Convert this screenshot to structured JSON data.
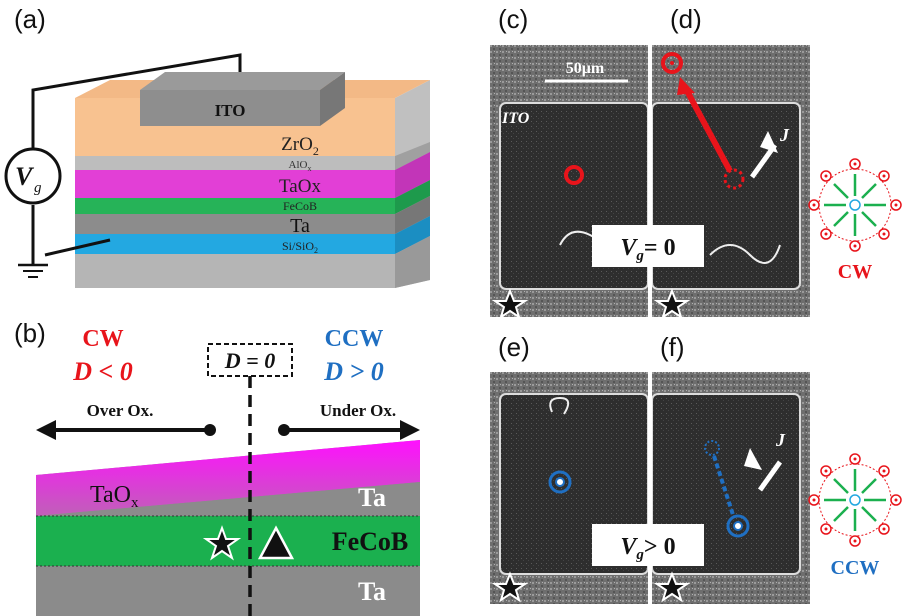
{
  "panels": {
    "a": "(a)",
    "b": "(b)",
    "c": "(c)",
    "d": "(d)",
    "e": "(e)",
    "f": "(f)"
  },
  "device": {
    "electrode": "ITO",
    "gate_voltage": "V",
    "gate_voltage_sub": "g",
    "layers": [
      {
        "label": "ZrO",
        "sub": "2",
        "color": "#f7c08c"
      },
      {
        "label": "AlO",
        "sub": "x",
        "color": "#b9b9b9"
      },
      {
        "label": "TaOx",
        "sub": "",
        "color": "#e33ed8"
      },
      {
        "label": "FeCoB",
        "sub": "",
        "color": "#27b35a"
      },
      {
        "label": "Ta",
        "sub": "",
        "color": "#8a8a8a"
      },
      {
        "label": "Si/SiO",
        "sub": "2",
        "color": "#22a7e0"
      }
    ]
  },
  "dmi": {
    "cw_label": "CW",
    "cw_condition": "D < 0",
    "ccw_label": "CCW",
    "ccw_condition": "D > 0",
    "zero_condition": "D = 0",
    "over_ox": "Over Ox.",
    "under_ox": "Under Ox.",
    "layer_taox": "TaO",
    "layer_taox_sub": "x",
    "layer_ta_top": "Ta",
    "layer_fecob": "FeCoB",
    "layer_ta_bottom": "Ta",
    "colors": {
      "cw": "#e8141b",
      "ccw": "#1f6fc2",
      "taox": "#ff1cff",
      "fecob": "#1bb04f",
      "ta": "#8b8b8b"
    }
  },
  "microscopy": {
    "scale_bar": "50μm",
    "electrode": "ITO",
    "current": "J",
    "vg_zero": "V",
    "vg_zero_sub": "g",
    "vg_zero_rel": "= 0",
    "vg_pos": "V",
    "vg_pos_sub": "g",
    "vg_pos_rel": "> 0",
    "cw_label": "CW",
    "ccw_label": "CCW"
  }
}
